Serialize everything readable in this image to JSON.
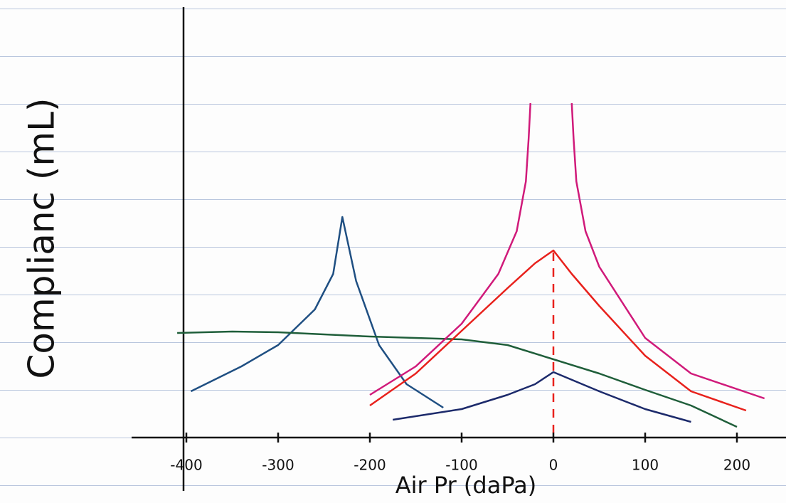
{
  "chart_data": {
    "type": "line",
    "x_label": "Air Pr (daPa)",
    "y_label": "Complianc (mL)",
    "xlim": [
      -420,
      250
    ],
    "ylim": [
      0,
      6
    ],
    "xticks": [
      -400,
      -300,
      -200,
      -100,
      0,
      100,
      200
    ],
    "series": [
      {
        "name": null,
        "color": "#1f4f82",
        "x": [
          -395,
          -340,
          -300,
          -260,
          -240,
          -230,
          -215,
          -190,
          -160,
          -120
        ],
        "values": [
          0.65,
          1.0,
          1.3,
          1.8,
          2.3,
          3.1,
          2.2,
          1.3,
          0.75,
          0.42
        ]
      },
      {
        "name": null,
        "color": "#1f5e3a",
        "x": [
          -410,
          -350,
          -300,
          -200,
          -100,
          -50,
          0,
          50,
          100,
          150,
          200
        ],
        "values": [
          1.47,
          1.49,
          1.48,
          1.42,
          1.38,
          1.3,
          1.1,
          0.9,
          0.67,
          0.45,
          0.15
        ]
      },
      {
        "name": null,
        "color": "#1c2a6b",
        "x": [
          -175,
          -100,
          -50,
          -20,
          0,
          50,
          100,
          150
        ],
        "values": [
          0.25,
          0.4,
          0.6,
          0.75,
          0.92,
          0.65,
          0.4,
          0.22
        ]
      },
      {
        "name": null,
        "color": "#e8211c",
        "x": [
          -200,
          -150,
          -100,
          -50,
          -20,
          0,
          20,
          50,
          100,
          150,
          210
        ],
        "values": [
          0.45,
          0.9,
          1.5,
          2.1,
          2.45,
          2.63,
          2.3,
          1.85,
          1.15,
          0.65,
          0.38
        ]
      },
      {
        "name": null,
        "color": "#d01a7a",
        "x": [
          -200,
          -150,
          -100,
          -60,
          -40,
          -30,
          -27,
          -25,
          null,
          20,
          22,
          25,
          35,
          50,
          100,
          150,
          230
        ],
        "values": [
          0.6,
          1.0,
          1.6,
          2.3,
          2.9,
          3.6,
          4.2,
          4.7,
          null,
          4.7,
          4.2,
          3.6,
          2.9,
          2.4,
          1.4,
          0.9,
          0.55
        ]
      }
    ]
  }
}
